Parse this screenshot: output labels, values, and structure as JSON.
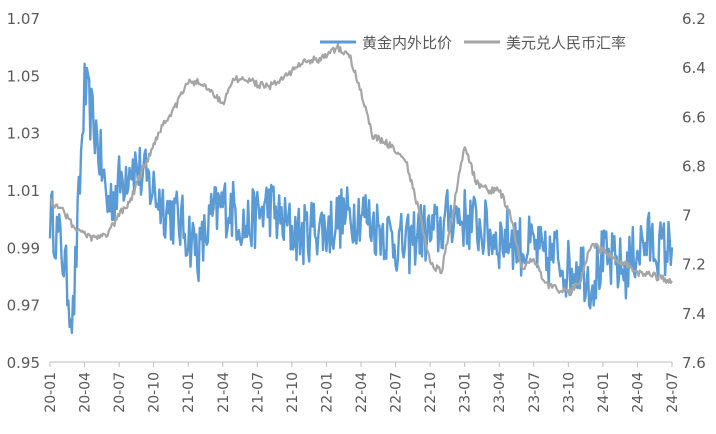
{
  "chart_data": {
    "type": "line",
    "title": "",
    "xlabel": "",
    "ylabel_left": "",
    "ylabel_right": "",
    "x_ticks": [
      "20-01",
      "20-04",
      "20-07",
      "20-10",
      "21-01",
      "21-04",
      "21-07",
      "21-10",
      "22-01",
      "22-04",
      "22-07",
      "22-10",
      "23-01",
      "23-04",
      "23-07",
      "23-10",
      "24-01",
      "24-04",
      "24-07"
    ],
    "y_left": {
      "min": 0.95,
      "max": 1.07,
      "ticks": [
        "1.07",
        "1.05",
        "1.03",
        "1.01",
        "0.99",
        "0.97",
        "0.95"
      ]
    },
    "y_right": {
      "min": 6.2,
      "max": 7.6,
      "inverted": true,
      "ticks": [
        "6.2",
        "6.4",
        "6.6",
        "6.8",
        "7",
        "7.2",
        "7.4",
        "7.6"
      ]
    },
    "grid": false,
    "legend_position": "top-right",
    "series": [
      {
        "name": "黄金内外比价",
        "axis": "left",
        "color": "#5B9BD5",
        "x": [
          "20-01",
          "20-02",
          "20-03",
          "20-04",
          "20-05",
          "20-06",
          "20-07",
          "20-08",
          "20-09",
          "20-10",
          "20-11",
          "20-12",
          "21-01",
          "21-02",
          "21-03",
          "21-04",
          "21-05",
          "21-06",
          "21-07",
          "21-08",
          "21-09",
          "21-10",
          "21-11",
          "21-12",
          "22-01",
          "22-02",
          "22-03",
          "22-04",
          "22-05",
          "22-06",
          "22-07",
          "22-08",
          "22-09",
          "22-10",
          "22-11",
          "22-12",
          "23-01",
          "23-02",
          "23-03",
          "23-04",
          "23-05",
          "23-06",
          "23-07",
          "23-08",
          "23-09",
          "23-10",
          "23-11",
          "23-12",
          "24-01",
          "24-02",
          "24-03",
          "24-04",
          "24-05",
          "24-06",
          "24-07"
        ],
        "values": [
          1.002,
          0.99,
          0.965,
          1.045,
          1.03,
          1.005,
          1.012,
          1.02,
          1.015,
          1.01,
          1.004,
          1.0,
          0.995,
          0.988,
          1.0,
          1.005,
          1.003,
          0.997,
          1.001,
          1.005,
          0.999,
          0.996,
          0.994,
          0.998,
          0.996,
          1.0,
          1.001,
          1.003,
          0.998,
          0.996,
          0.992,
          0.99,
          0.996,
          0.994,
          0.997,
          1.002,
          1.0,
          0.998,
          0.995,
          0.993,
          0.994,
          0.99,
          0.99,
          0.985,
          0.988,
          0.982,
          0.985,
          0.978,
          0.986,
          0.984,
          0.982,
          0.99,
          0.992,
          0.989,
          0.99
        ]
      },
      {
        "name": "美元兑人民币汇率",
        "axis": "right",
        "color": "#A5A5A5",
        "x": [
          "20-01",
          "20-02",
          "20-03",
          "20-04",
          "20-05",
          "20-06",
          "20-07",
          "20-08",
          "20-09",
          "20-10",
          "20-11",
          "20-12",
          "21-01",
          "21-02",
          "21-03",
          "21-04",
          "21-05",
          "21-06",
          "21-07",
          "21-08",
          "21-09",
          "21-10",
          "21-11",
          "21-12",
          "22-01",
          "22-02",
          "22-03",
          "22-04",
          "22-05",
          "22-06",
          "22-07",
          "22-08",
          "22-09",
          "22-10",
          "22-11",
          "22-12",
          "23-01",
          "23-02",
          "23-03",
          "23-04",
          "23-05",
          "23-06",
          "23-07",
          "23-08",
          "23-09",
          "23-10",
          "23-11",
          "23-12",
          "24-01",
          "24-02",
          "24-03",
          "24-04",
          "24-05",
          "24-06",
          "24-07"
        ],
        "values": [
          6.95,
          6.97,
          7.05,
          7.08,
          7.1,
          7.08,
          7.0,
          6.94,
          6.82,
          6.72,
          6.62,
          6.55,
          6.46,
          6.46,
          6.5,
          6.55,
          6.45,
          6.45,
          6.47,
          6.48,
          6.45,
          6.42,
          6.38,
          6.37,
          6.36,
          6.32,
          6.35,
          6.5,
          6.68,
          6.7,
          6.74,
          6.8,
          6.98,
          7.2,
          7.23,
          6.98,
          6.72,
          6.87,
          6.9,
          6.9,
          7.0,
          7.22,
          7.18,
          7.28,
          7.3,
          7.32,
          7.27,
          7.12,
          7.15,
          7.18,
          7.2,
          7.24,
          7.24,
          7.26,
          7.27
        ]
      }
    ]
  }
}
